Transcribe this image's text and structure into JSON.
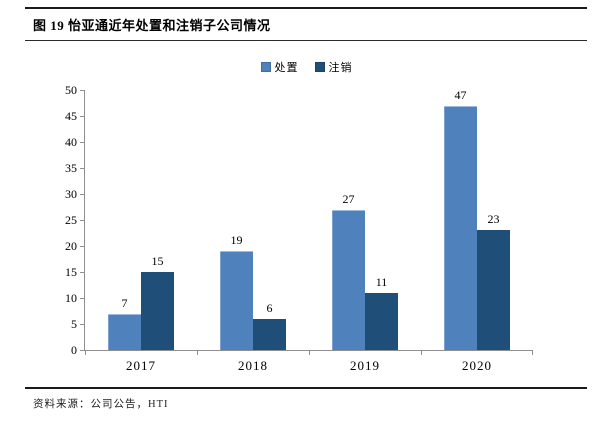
{
  "header": {
    "title": "图 19 怡亚通近年处置和注销子公司情况"
  },
  "footer": {
    "source": "资料来源：公司公告，HTI"
  },
  "colors": {
    "series_light": "#4F81BD",
    "series_dark": "#1F4E79",
    "axis": "#8f8f8f",
    "rule": "#1a1a1a"
  },
  "chart_data": {
    "type": "bar",
    "title": "图 19 怡亚通近年处置和注销子公司情况",
    "categories": [
      "2017",
      "2018",
      "2019",
      "2020"
    ],
    "series": [
      {
        "name": "处置",
        "color": "#4F81BD",
        "values": [
          7,
          19,
          27,
          47
        ]
      },
      {
        "name": "注销",
        "color": "#1F4E79",
        "values": [
          15,
          6,
          11,
          23
        ]
      }
    ],
    "xlabel": "",
    "ylabel": "",
    "ylim": [
      0,
      50
    ],
    "ytick_step": 5,
    "grid": false,
    "legend_position": "top-center",
    "value_labels": true
  }
}
